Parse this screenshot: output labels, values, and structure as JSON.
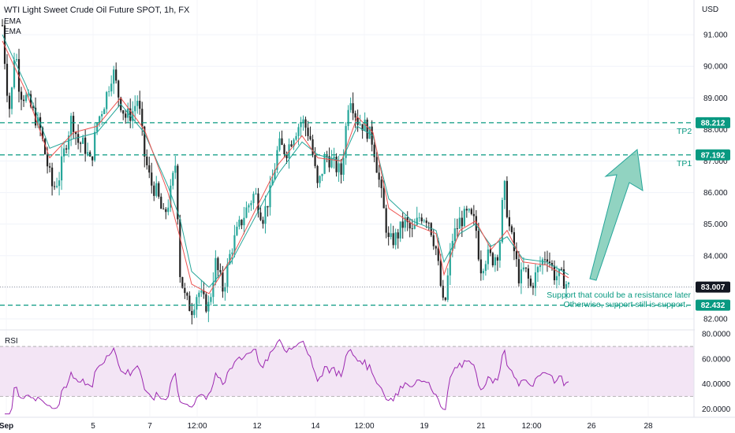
{
  "title": "WTI Light Sweet Crude Oil Future SPOT, 1h, FX",
  "indicators": [
    "EMA",
    "EMA"
  ],
  "currency": "USD",
  "rsi_label": "RSI",
  "colors": {
    "up": "#26a69a",
    "down": "#222222",
    "ema_fast": "#ef5350",
    "ema_slow": "#26a69a",
    "level_line": "#089981",
    "annotation": "#089981",
    "rsi_line": "#9c27b0",
    "rsi_band": "#f3e5f5",
    "current_price_badge": "#131722",
    "arrow_fill": "#7ecbb6",
    "arrow_stroke": "#26a69a"
  },
  "levels": [
    {
      "value": 88.212,
      "badge": "88.212",
      "label": "TP2"
    },
    {
      "value": 87.192,
      "badge": "87.192",
      "label": "TP1"
    },
    {
      "value": 82.432,
      "badge": "82.432",
      "label": ""
    }
  ],
  "current_price": {
    "value": 83.007,
    "badge": "83.007"
  },
  "annotations": [
    "Support that could be a resistance later",
    "Otherwise, support still is support."
  ],
  "chart_data": [
    {
      "type": "candlestick",
      "title": "WTI Light Sweet Crude Oil Future SPOT, 1h, FX",
      "ylim": [
        81.7,
        92.0
      ],
      "y_ticks": [
        "82.000",
        "83.000",
        "84.000",
        "85.000",
        "86.000",
        "87.000",
        "88.000",
        "89.000",
        "90.000",
        "91.000"
      ],
      "y_tick_values": [
        82,
        83,
        84,
        85,
        86,
        87,
        88,
        89,
        90,
        91
      ],
      "x_tick_labels": [
        "Sep",
        "5",
        "7",
        "12:00",
        "12",
        "14",
        "12:00",
        "19",
        "21",
        "12:00",
        "26",
        "28"
      ],
      "price_path": [
        [
          0,
          91.3
        ],
        [
          5,
          89.5
        ],
        [
          10,
          88.5
        ],
        [
          16,
          90.7
        ],
        [
          22,
          89.2
        ],
        [
          30,
          89.0
        ],
        [
          38,
          88.6
        ],
        [
          48,
          88.0
        ],
        [
          56,
          87.0
        ],
        [
          64,
          86.1
        ],
        [
          72,
          86.5
        ],
        [
          80,
          87.5
        ],
        [
          88,
          88.4
        ],
        [
          96,
          87.6
        ],
        [
          104,
          87.5
        ],
        [
          112,
          86.9
        ],
        [
          120,
          88.2
        ],
        [
          130,
          88.9
        ],
        [
          140,
          89.9
        ],
        [
          148,
          89.0
        ],
        [
          156,
          88.4
        ],
        [
          164,
          88.5
        ],
        [
          172,
          89.0
        ],
        [
          180,
          87.2
        ],
        [
          188,
          86.3
        ],
        [
          196,
          86.0
        ],
        [
          204,
          85.2
        ],
        [
          212,
          85.8
        ],
        [
          220,
          87.0
        ],
        [
          225,
          83.5
        ],
        [
          232,
          82.6
        ],
        [
          240,
          82.3
        ],
        [
          248,
          82.9
        ],
        [
          256,
          82.5
        ],
        [
          262,
          82.4
        ],
        [
          270,
          83.8
        ],
        [
          280,
          82.9
        ],
        [
          290,
          84.2
        ],
        [
          300,
          84.9
        ],
        [
          310,
          85.5
        ],
        [
          320,
          86.0
        ],
        [
          330,
          85.2
        ],
        [
          340,
          86.0
        ],
        [
          350,
          87.5
        ],
        [
          360,
          87.3
        ],
        [
          370,
          87.9
        ],
        [
          380,
          88.3
        ],
        [
          390,
          87.8
        ],
        [
          400,
          86.1
        ],
        [
          410,
          87.2
        ],
        [
          420,
          86.9
        ],
        [
          430,
          86.6
        ],
        [
          440,
          89.2
        ],
        [
          450,
          88.3
        ],
        [
          460,
          88.1
        ],
        [
          470,
          87.6
        ],
        [
          480,
          86.0
        ],
        [
          490,
          84.4
        ],
        [
          500,
          84.6
        ],
        [
          510,
          85.1
        ],
        [
          520,
          84.7
        ],
        [
          530,
          85.3
        ],
        [
          540,
          85.2
        ],
        [
          550,
          84.2
        ],
        [
          560,
          82.2
        ],
        [
          570,
          84.5
        ],
        [
          580,
          85.1
        ],
        [
          590,
          85.3
        ],
        [
          600,
          85.0
        ],
        [
          606,
          83.6
        ],
        [
          614,
          84.0
        ],
        [
          622,
          83.9
        ],
        [
          630,
          84.2
        ],
        [
          636,
          86.3
        ],
        [
          642,
          85.0
        ],
        [
          650,
          84.0
        ],
        [
          656,
          83.2
        ],
        [
          662,
          83.6
        ],
        [
          670,
          83.0
        ],
        [
          680,
          83.6
        ],
        [
          690,
          84.1
        ],
        [
          700,
          83.4
        ],
        [
          710,
          83.3
        ],
        [
          718,
          83.0
        ]
      ],
      "ema_fast_path": [
        [
          0,
          90.8
        ],
        [
          30,
          89.2
        ],
        [
          60,
          87.1
        ],
        [
          90,
          87.9
        ],
        [
          120,
          88.1
        ],
        [
          150,
          89.0
        ],
        [
          180,
          88.0
        ],
        [
          210,
          86.0
        ],
        [
          225,
          84.6
        ],
        [
          240,
          83.1
        ],
        [
          262,
          82.8
        ],
        [
          290,
          83.9
        ],
        [
          320,
          85.4
        ],
        [
          350,
          86.9
        ],
        [
          380,
          87.8
        ],
        [
          400,
          87.1
        ],
        [
          430,
          87.0
        ],
        [
          450,
          88.4
        ],
        [
          470,
          87.9
        ],
        [
          490,
          85.5
        ],
        [
          520,
          85.0
        ],
        [
          550,
          84.7
        ],
        [
          560,
          83.4
        ],
        [
          580,
          84.8
        ],
        [
          600,
          85.1
        ],
        [
          620,
          84.2
        ],
        [
          640,
          84.8
        ],
        [
          660,
          83.8
        ],
        [
          690,
          83.7
        ],
        [
          718,
          83.3
        ]
      ],
      "ema_slow_path": [
        [
          0,
          91.0
        ],
        [
          30,
          89.4
        ],
        [
          60,
          87.4
        ],
        [
          90,
          87.7
        ],
        [
          120,
          87.9
        ],
        [
          150,
          88.8
        ],
        [
          180,
          87.9
        ],
        [
          210,
          86.2
        ],
        [
          225,
          85.2
        ],
        [
          240,
          83.5
        ],
        [
          262,
          83.0
        ],
        [
          290,
          83.8
        ],
        [
          320,
          85.2
        ],
        [
          350,
          86.6
        ],
        [
          380,
          87.6
        ],
        [
          400,
          87.2
        ],
        [
          430,
          87.0
        ],
        [
          450,
          88.1
        ],
        [
          470,
          87.8
        ],
        [
          490,
          85.8
        ],
        [
          520,
          85.1
        ],
        [
          550,
          84.8
        ],
        [
          560,
          83.8
        ],
        [
          580,
          84.7
        ],
        [
          600,
          85.0
        ],
        [
          620,
          84.3
        ],
        [
          640,
          84.6
        ],
        [
          660,
          83.9
        ],
        [
          690,
          83.8
        ],
        [
          718,
          83.4
        ]
      ],
      "candle_count": 240
    },
    {
      "type": "line",
      "title": "RSI",
      "ylim": [
        14,
        82
      ],
      "y_ticks": [
        "20.0000",
        "40.0000",
        "60.0000",
        "80.0000"
      ],
      "y_tick_values": [
        20,
        40,
        60,
        80
      ],
      "band": [
        30,
        70
      ]
    }
  ]
}
